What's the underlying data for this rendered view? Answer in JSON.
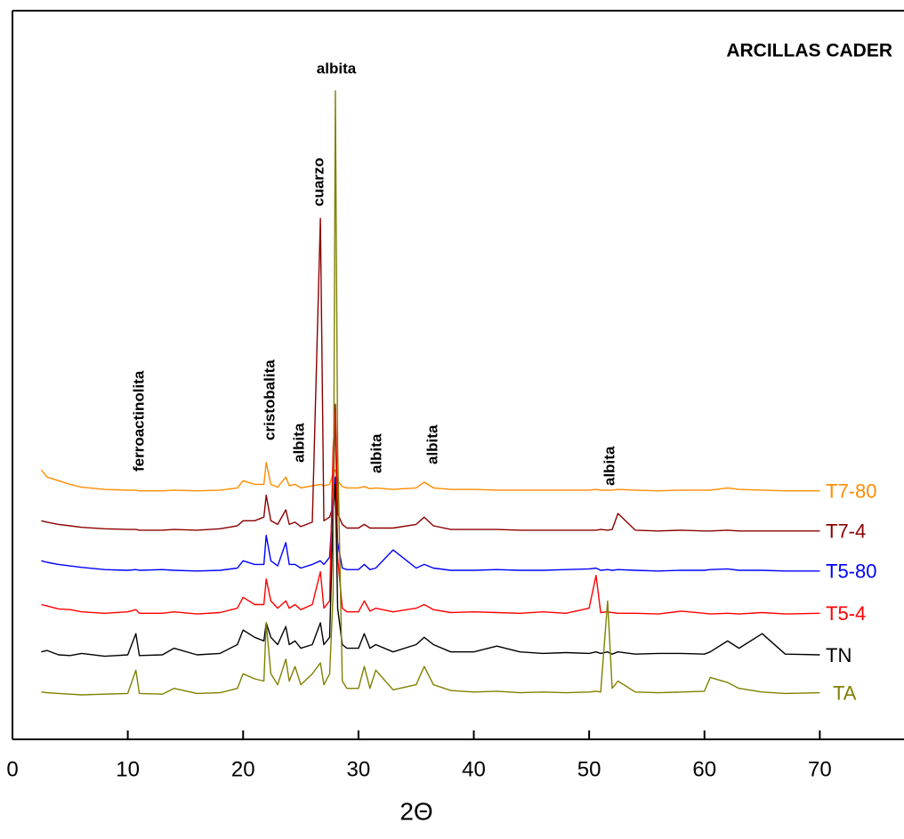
{
  "chart_data": {
    "type": "line",
    "title": "ARCILLAS CADER",
    "x_label": "2Θ",
    "xlim": [
      0,
      77.3
    ],
    "ylim": [
      0,
      100
    ],
    "xticks": [
      0,
      10,
      20,
      30,
      40,
      50,
      60,
      70
    ],
    "annotations": [
      "ferroactinolita",
      "cristobalita",
      "albita",
      "cuarzo",
      "albita",
      "albita",
      "albita",
      "albita"
    ],
    "x": [
      2.5,
      3,
      4,
      5,
      6,
      8,
      10,
      10.7,
      11,
      13,
      14,
      16,
      18,
      19.5,
      20,
      21,
      21.8,
      22,
      22.4,
      23,
      23.7,
      24,
      24.5,
      25,
      26,
      26.7,
      27,
      27.5,
      27.8,
      28,
      28.2,
      28.6,
      29,
      30,
      30.5,
      31,
      31.5,
      33,
      35,
      35.7,
      36.5,
      38,
      40,
      42,
      44,
      46,
      48,
      50,
      50.6,
      51,
      51.6,
      52,
      52.5,
      54,
      56,
      58,
      60,
      60.5,
      62,
      63,
      65,
      67,
      70
    ],
    "series": [
      {
        "name": "T7-80",
        "color": "#ff8c00",
        "values": [
          37,
          36,
          35.5,
          35,
          34.6,
          34.3,
          34.2,
          34.2,
          34.1,
          34.1,
          34.2,
          34.1,
          34.2,
          34.5,
          35.5,
          35,
          35,
          38,
          35,
          34.6,
          36,
          34.8,
          35,
          34.5,
          34.8,
          35,
          34.8,
          35,
          36.5,
          37,
          35.5,
          34.7,
          34.5,
          34.5,
          34.7,
          34.4,
          34.5,
          34.3,
          34.5,
          35.3,
          34.5,
          34.3,
          34.3,
          34.2,
          34.2,
          34.2,
          34.2,
          34.2,
          34.3,
          34.2,
          34.2,
          34.2,
          34.3,
          34.2,
          34.1,
          34.2,
          34.2,
          34.2,
          34.5,
          34.3,
          34.2,
          34.1,
          34.1
        ]
      },
      {
        "name": "T7-4",
        "color": "#8b0000",
        "values": [
          30,
          29.8,
          29.5,
          29.3,
          29.1,
          28.9,
          28.8,
          28.8,
          28.7,
          28.7,
          28.8,
          28.7,
          28.9,
          29.3,
          30,
          30,
          30.5,
          33.5,
          30,
          29.5,
          31.5,
          29.5,
          29.8,
          29.2,
          29.8,
          71.5,
          30,
          30.5,
          32,
          46,
          31,
          29.5,
          29,
          29,
          29.5,
          29,
          29,
          29,
          29.5,
          30.5,
          29.3,
          28.8,
          28.8,
          28.8,
          28.7,
          28.7,
          28.7,
          28.7,
          28.7,
          28.8,
          28.7,
          28.8,
          31,
          28.7,
          28.6,
          28.7,
          28.6,
          28.6,
          28.7,
          28.6,
          28.6,
          28.6,
          28.6
        ]
      },
      {
        "name": "T5-80",
        "color": "#0000ff",
        "values": [
          24.5,
          24.3,
          24,
          23.8,
          23.6,
          23.3,
          23.2,
          23.3,
          23.2,
          23.3,
          23.2,
          23.1,
          23.2,
          23.5,
          24.5,
          24,
          24,
          28,
          24.5,
          23.8,
          27,
          24,
          24,
          23.5,
          24,
          24.5,
          24,
          25,
          33,
          36,
          27,
          23.5,
          23.3,
          23.3,
          24,
          23.3,
          23.5,
          26,
          23.5,
          24,
          23.5,
          23.2,
          23.2,
          23.3,
          23.2,
          23.2,
          23.3,
          23.4,
          23.5,
          23.2,
          23.3,
          23.2,
          23.3,
          23.2,
          23.1,
          23.2,
          23.2,
          23.3,
          23.4,
          23.2,
          23.2,
          23.1,
          23.1
        ]
      },
      {
        "name": "T5-4",
        "color": "#ff0000",
        "values": [
          18.5,
          18.3,
          17.9,
          17.8,
          17.5,
          17.3,
          17.5,
          17.8,
          17.3,
          17.3,
          17.5,
          17.2,
          17.4,
          18,
          19.5,
          18.5,
          18.5,
          22,
          19,
          18,
          19,
          18,
          18.5,
          17.8,
          18.5,
          23,
          18,
          19,
          40,
          45,
          25,
          18,
          17.5,
          17.5,
          19,
          17.6,
          18,
          17.5,
          18,
          18.5,
          17.8,
          17.4,
          17.5,
          17.4,
          17.3,
          17.5,
          17.3,
          18,
          22.5,
          17.4,
          17.5,
          17.4,
          17.3,
          17.3,
          17.2,
          17.6,
          17.3,
          17.2,
          17.3,
          17.2,
          17.4,
          17.2,
          17.3
        ]
      },
      {
        "name": "TN",
        "color": "#000000",
        "values": [
          12,
          12.2,
          11.6,
          11.5,
          11.8,
          11.4,
          11.6,
          14.5,
          11.5,
          11.6,
          12.5,
          11.6,
          11.8,
          13,
          15,
          14,
          13.5,
          16,
          14,
          13,
          15.5,
          13,
          13.5,
          12.5,
          13,
          16,
          13,
          14,
          31,
          35,
          18,
          13,
          12.5,
          12.5,
          14.5,
          12.5,
          13,
          12,
          13,
          14,
          13,
          12,
          12,
          12.8,
          12,
          11.8,
          11.9,
          11.8,
          12,
          11.8,
          12,
          11.7,
          12,
          11.7,
          11.8,
          11.8,
          11.7,
          12,
          13.5,
          12.5,
          14.5,
          11.7,
          11.6
        ]
      },
      {
        "name": "TA",
        "color": "#808000",
        "values": [
          6.5,
          6.4,
          6.3,
          6.2,
          6.1,
          6.2,
          6.3,
          9.5,
          6.3,
          6.2,
          7,
          6.3,
          6.4,
          7,
          9,
          8.3,
          8,
          16,
          9,
          7.5,
          11,
          8,
          10,
          7.5,
          9,
          10.5,
          7.5,
          9,
          20,
          89,
          40,
          8,
          7,
          7,
          10,
          7,
          9.5,
          6.8,
          7.5,
          10,
          7.5,
          6.7,
          6.5,
          6.6,
          6.4,
          6.5,
          6.4,
          6.5,
          6.6,
          6.5,
          19,
          7,
          8,
          6.5,
          6.4,
          6.5,
          6.6,
          8.5,
          7.8,
          7,
          6.5,
          6.3,
          6.4
        ]
      }
    ]
  }
}
